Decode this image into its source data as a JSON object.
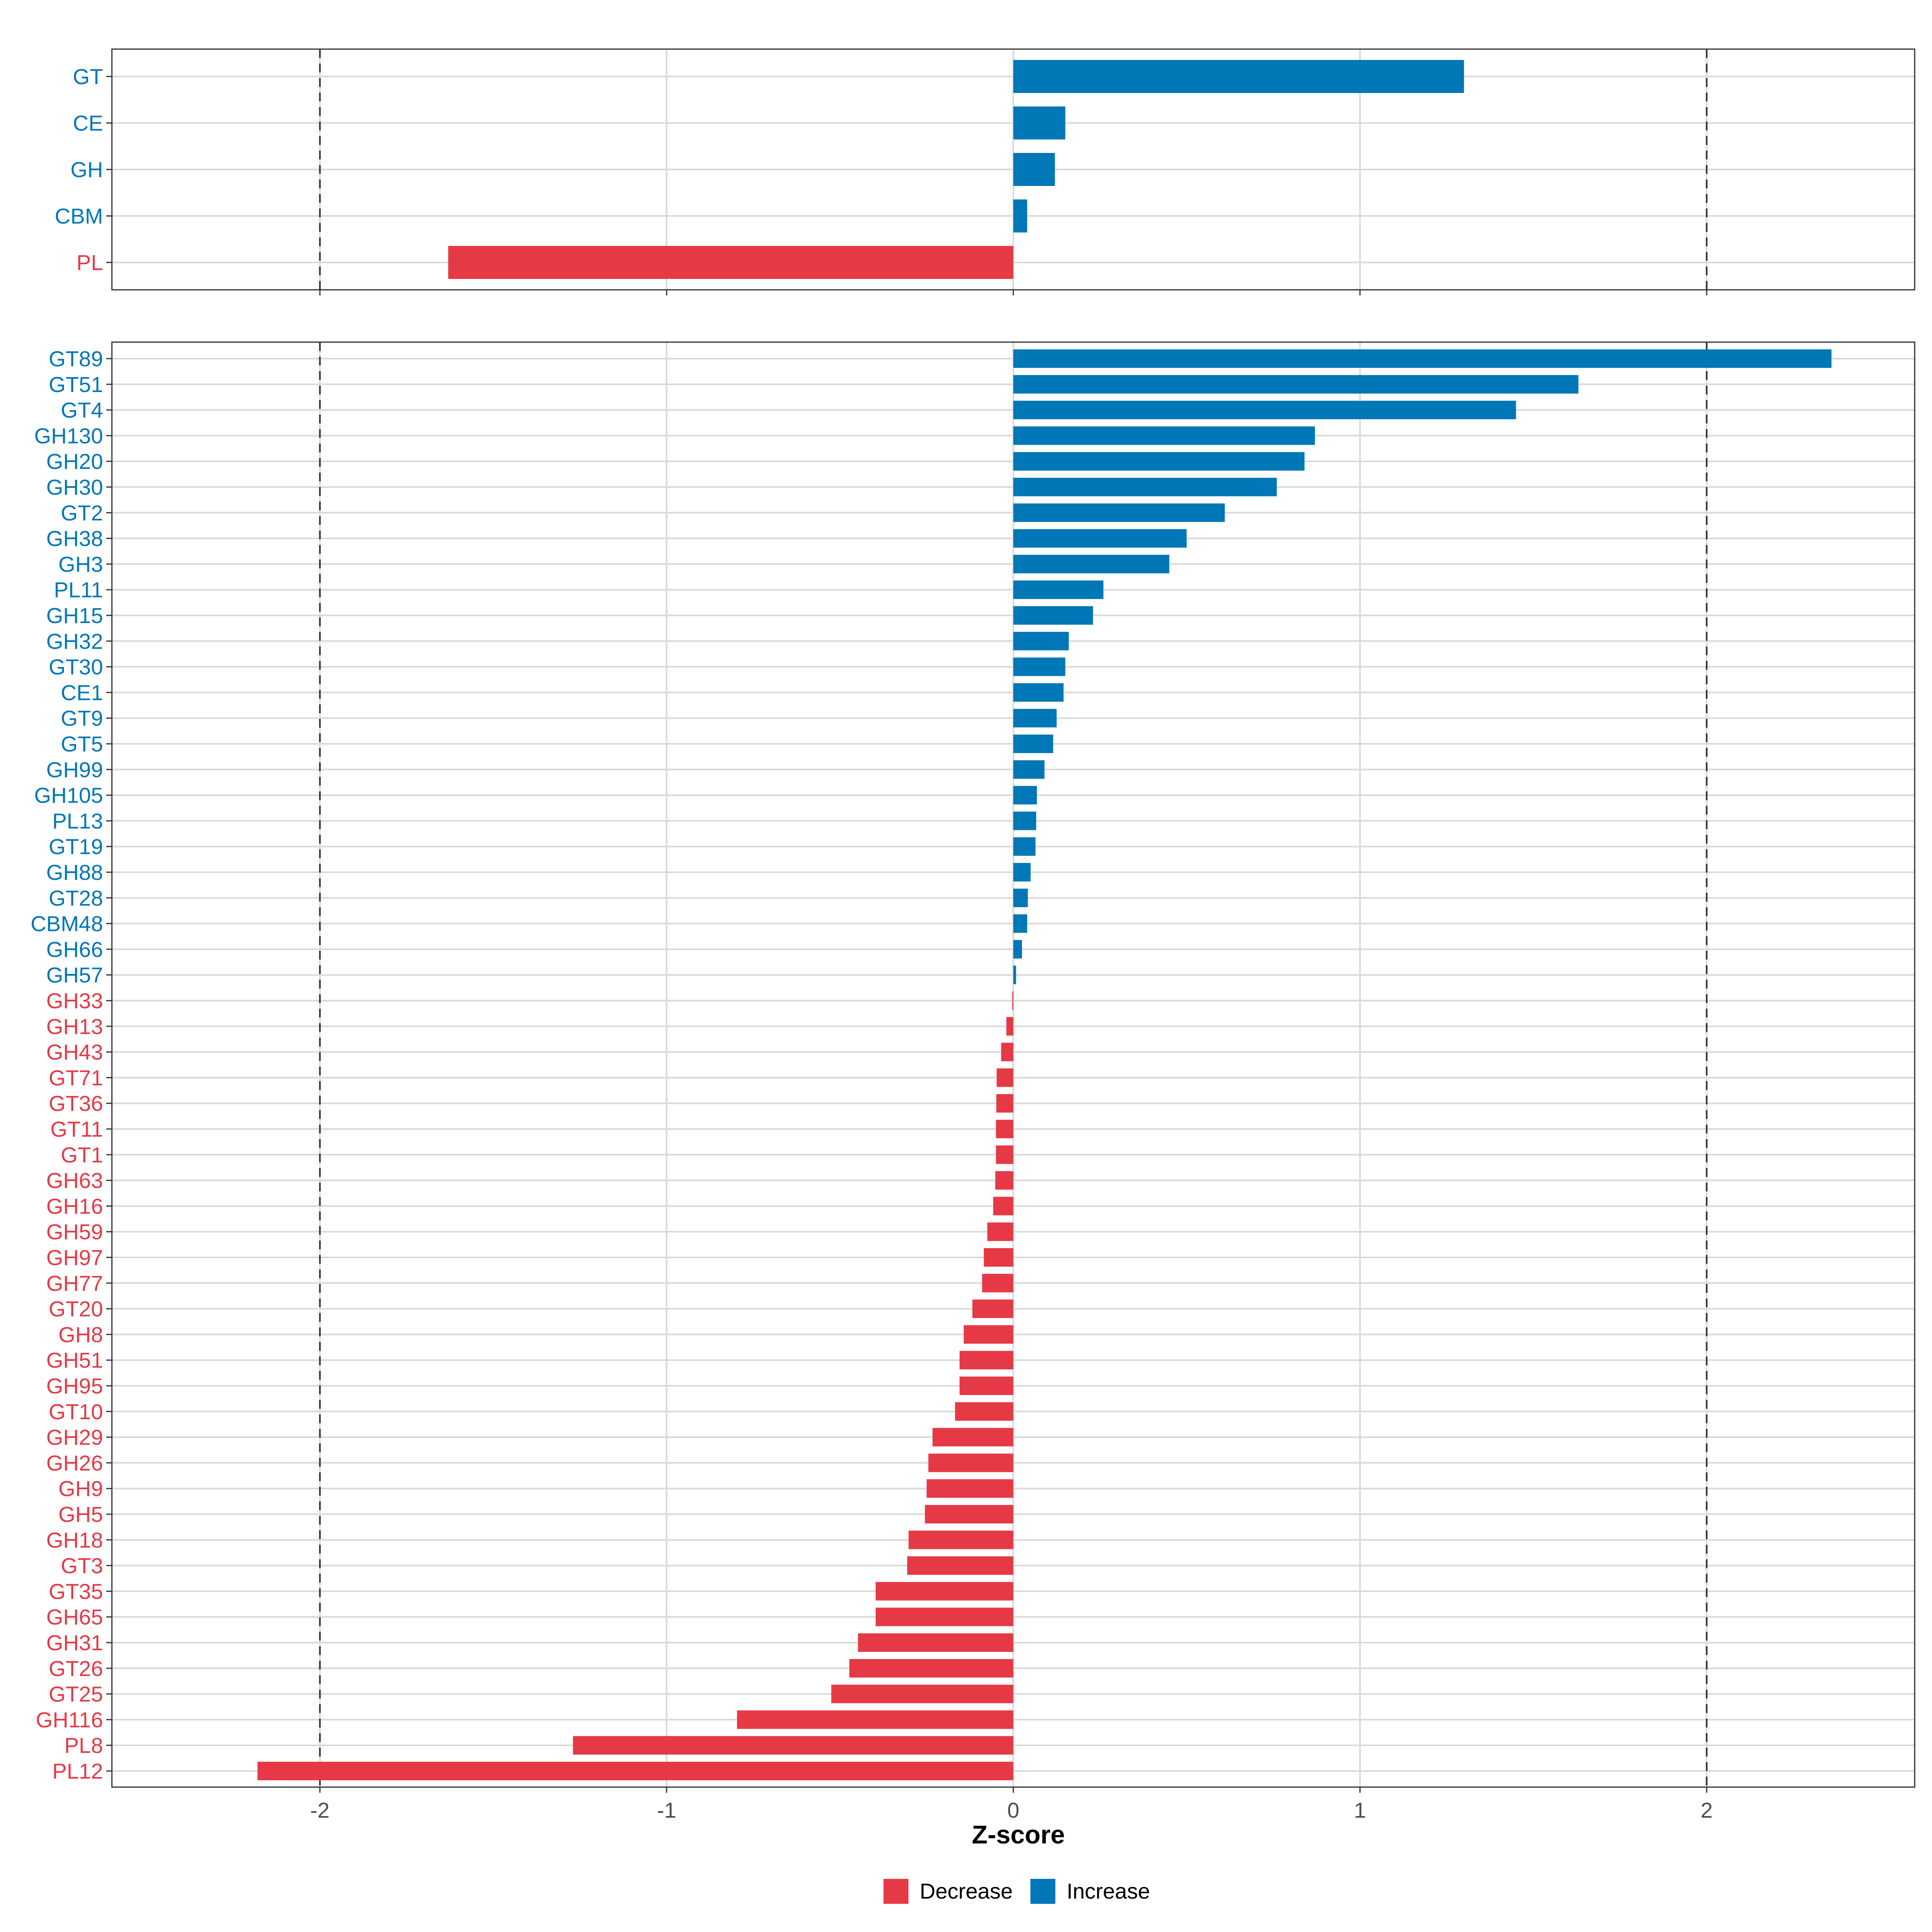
{
  "chart_data": [
    {
      "type": "bar",
      "orientation": "horizontal",
      "panel": "top",
      "categories": [
        "GT",
        "CE",
        "GH",
        "CBM",
        "PL"
      ],
      "values": [
        1.3,
        0.15,
        0.12,
        0.04,
        -1.63
      ],
      "xlim": [
        -2.6,
        2.6
      ],
      "x_ticks": [
        -2,
        -1,
        0,
        1,
        2
      ],
      "reference_lines": [
        -2,
        2
      ],
      "grid": true
    },
    {
      "type": "bar",
      "orientation": "horizontal",
      "panel": "bottom",
      "categories": [
        "GT89",
        "GT51",
        "GT4",
        "GH130",
        "GH20",
        "GH30",
        "GT2",
        "GH38",
        "GH3",
        "PL11",
        "GH15",
        "GH32",
        "GT30",
        "CE1",
        "GT9",
        "GT5",
        "GH99",
        "GH105",
        "PL13",
        "GT19",
        "GH88",
        "GT28",
        "CBM48",
        "GH66",
        "GH57",
        "GH33",
        "GH13",
        "GH43",
        "GT71",
        "GT36",
        "GT11",
        "GT1",
        "GH63",
        "GH16",
        "GH59",
        "GH97",
        "GH77",
        "GT20",
        "GH8",
        "GH51",
        "GH95",
        "GT10",
        "GH29",
        "GH26",
        "GH9",
        "GH5",
        "GH18",
        "GT3",
        "GT35",
        "GH65",
        "GH31",
        "GT26",
        "GT25",
        "GH116",
        "PL8",
        "PL12"
      ],
      "values": [
        2.36,
        1.63,
        1.45,
        0.87,
        0.84,
        0.76,
        0.61,
        0.5,
        0.45,
        0.26,
        0.23,
        0.16,
        0.15,
        0.145,
        0.125,
        0.115,
        0.09,
        0.068,
        0.066,
        0.064,
        0.05,
        0.042,
        0.04,
        0.025,
        0.008,
        -0.003,
        -0.02,
        -0.035,
        -0.048,
        -0.049,
        -0.05,
        -0.05,
        -0.052,
        -0.058,
        -0.075,
        -0.085,
        -0.09,
        -0.118,
        -0.143,
        -0.155,
        -0.155,
        -0.168,
        -0.233,
        -0.245,
        -0.25,
        -0.255,
        -0.302,
        -0.306,
        -0.397,
        -0.397,
        -0.448,
        -0.473,
        -0.525,
        -0.797,
        -1.27,
        -2.18
      ],
      "xlim": [
        -2.6,
        2.6
      ],
      "x_ticks": [
        -2,
        -1,
        0,
        1,
        2
      ],
      "reference_lines": [
        -2,
        2
      ],
      "xlabel": "Z-score",
      "grid": true
    }
  ],
  "x_tick_labels": [
    "-2",
    "-1",
    "0",
    "1",
    "2"
  ],
  "legend": {
    "items": [
      {
        "label": "Decrease",
        "color": "#e63946"
      },
      {
        "label": "Increase",
        "color": "#0077b6"
      }
    ],
    "position": "bottom"
  },
  "colors": {
    "increase": "#0077b6",
    "decrease": "#e63946",
    "grid": "#d9d9d9",
    "border": "#333333",
    "reference": "#333333"
  }
}
